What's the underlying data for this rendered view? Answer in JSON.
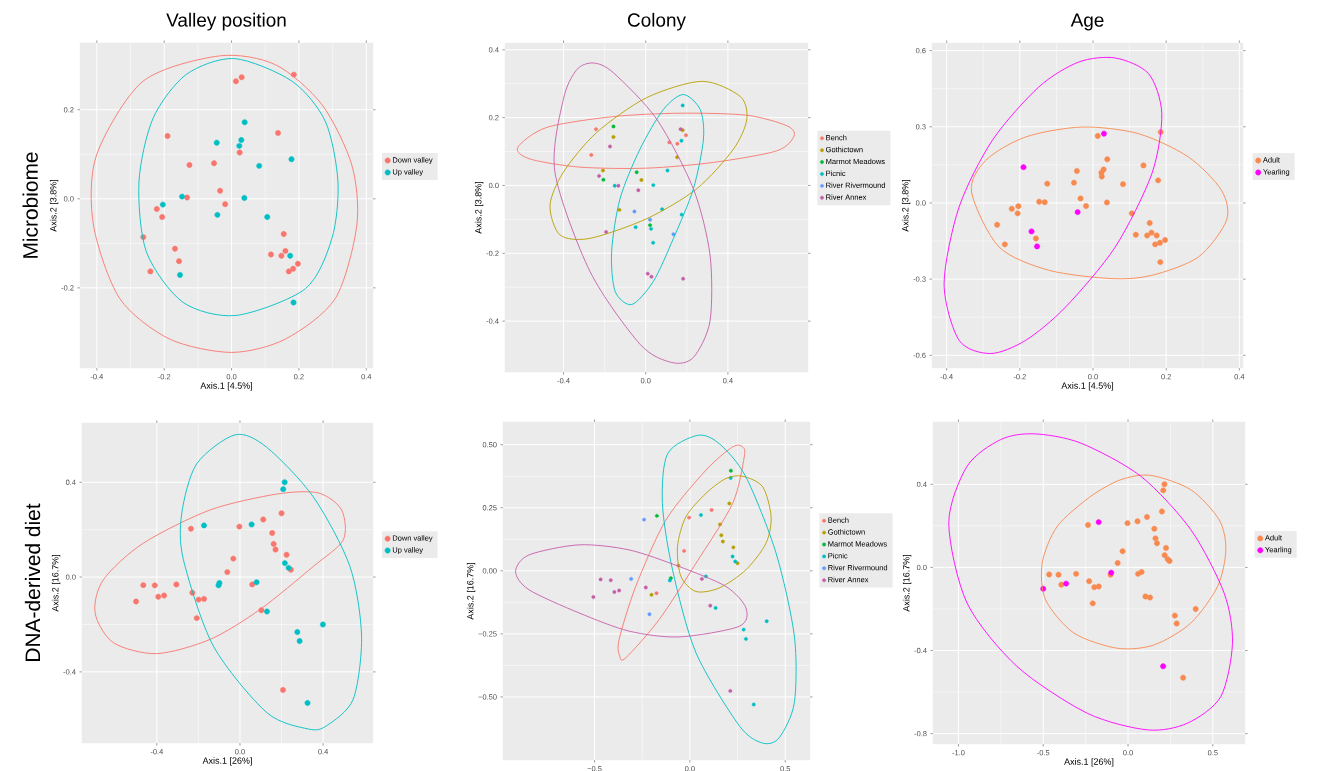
{
  "chart_data": [
    {
      "type": "scatter",
      "title": "Valley position",
      "xlabel": "Axis.1 [4.5%]",
      "ylabel": "Axis.2 [3.8%]",
      "annotations": [
        "Microbiome"
      ],
      "grid": true,
      "legend": "right",
      "marker": "circle",
      "xlim": [
        -0.45,
        0.42
      ],
      "ylim": [
        -0.38,
        0.35
      ],
      "xticks": [
        {
          "value": -0.4,
          "label": "-0.4"
        },
        {
          "value": -0.2,
          "label": "-0.2"
        },
        {
          "value": 0,
          "label": "0.0"
        },
        {
          "value": 0.2,
          "label": "0.2"
        },
        {
          "value": 0.4,
          "label": "0.4"
        }
      ],
      "yticks": [
        {
          "value": -0.2,
          "label": "-0.2"
        },
        {
          "value": 0,
          "label": "0.0"
        },
        {
          "value": 0.2,
          "label": "0.2"
        }
      ],
      "series": [
        {
          "name": "Down valley",
          "color": "#F8766D",
          "x": [
            0.013,
            0.03,
            0.185,
            -0.19,
            0.138,
            0.024,
            -0.125,
            -0.052,
            -0.034,
            -0.019,
            -0.132,
            -0.222,
            -0.206,
            -0.262,
            -0.168,
            -0.156,
            -0.241,
            0.155,
            0.117,
            0.148,
            0.16,
            0.197,
            0.183,
            0.17
          ],
          "values": [
            0.264,
            0.273,
            0.279,
            0.141,
            0.148,
            0.104,
            0.076,
            0.08,
            0.018,
            -0.012,
            0.003,
            -0.023,
            -0.041,
            -0.086,
            -0.112,
            -0.14,
            -0.163,
            -0.079,
            -0.125,
            -0.128,
            -0.117,
            -0.146,
            -0.157,
            -0.163
          ]
        },
        {
          "name": "Up valley",
          "color": "#00BFC4",
          "x": [
            -0.044,
            0.039,
            0.029,
            0.023,
            0.178,
            0.082,
            -0.147,
            -0.204,
            0.038,
            -0.042,
            0.106,
            0.174,
            -0.153,
            0.184
          ],
          "values": [
            0.126,
            0.172,
            0.132,
            0.119,
            0.089,
            0.074,
            0.005,
            -0.013,
            0.002,
            -0.036,
            -0.041,
            -0.128,
            -0.171,
            -0.233
          ]
        }
      ]
    },
    {
      "type": "scatter",
      "title": "Colony",
      "ylabel": "Axis.2 [3.8%]",
      "grid": true,
      "legend": "right",
      "marker": "circle",
      "xlim": [
        -0.685,
        0.79
      ],
      "ylim": [
        -0.55,
        0.42
      ],
      "xticks": [
        {
          "value": -0.4,
          "label": "-0.4"
        },
        {
          "value": 0,
          "label": "0.0"
        },
        {
          "value": 0.4,
          "label": "0.4"
        }
      ],
      "yticks": [
        {
          "value": -0.4,
          "label": "-0.4"
        },
        {
          "value": -0.2,
          "label": "-0.2"
        },
        {
          "value": 0,
          "label": "0.0"
        },
        {
          "value": 0.2,
          "label": "0.2"
        },
        {
          "value": 0.4,
          "label": "0.4"
        }
      ],
      "series": [
        {
          "name": "Bench",
          "color": "#F8766D",
          "x": [
            -0.242,
            -0.265,
            0.115,
            0.154,
            0.196
          ],
          "values": [
            0.166,
            0.09,
            0.127,
            0.123,
            0.148
          ]
        },
        {
          "name": "Gothictown",
          "color": "#B79F00",
          "x": [
            -0.157,
            -0.208,
            0.18,
            0.153,
            -0.021,
            -0.128
          ],
          "values": [
            0.143,
            0.044,
            0.163,
            0.083,
            0.016,
            -0.072
          ]
        },
        {
          "name": "Marmot Meadows",
          "color": "#00BA38",
          "x": [
            -0.157,
            -0.206,
            -0.044,
            0.021
          ],
          "values": [
            0.174,
            0.017,
            0.039,
            -0.117
          ]
        },
        {
          "name": "Picnic",
          "color": "#00BFC4",
          "x": [
            0.18,
            0.174,
            0.106,
            -0.151,
            0.037,
            0.08,
            -0.049,
            0.026,
            0.036,
            0.175
          ],
          "values": [
            0.236,
            0.132,
            0.044,
            -0.001,
            0.001,
            -0.07,
            -0.123,
            -0.128,
            -0.169,
            -0.086
          ]
        },
        {
          "name": "River Rivermound",
          "color": "#619CFF",
          "x": [
            -0.055,
            0.021,
            0.135
          ],
          "values": [
            -0.077,
            -0.101,
            -0.144
          ]
        },
        {
          "name": "River Annex",
          "color": "#C55FA9",
          "x": [
            0.17,
            -0.174,
            -0.227,
            -0.133,
            -0.036,
            -0.193,
            0.01,
            0.028,
            0.182
          ],
          "values": [
            0.166,
            0.115,
            0.028,
            -0.001,
            -0.014,
            -0.137,
            -0.26,
            -0.269,
            -0.275
          ]
        }
      ]
    },
    {
      "type": "scatter",
      "title": "Age",
      "xlabel": "Axis.1 [4.5%]",
      "ylabel": "Axis.2 [3.8%]",
      "grid": true,
      "legend": "right",
      "marker": "circle",
      "xlim": [
        -0.44,
        0.41
      ],
      "ylim": [
        -0.65,
        0.63
      ],
      "xticks": [
        {
          "value": -0.4,
          "label": "-0.4"
        },
        {
          "value": -0.2,
          "label": "-0.2"
        },
        {
          "value": 0,
          "label": "0.0"
        },
        {
          "value": 0.2,
          "label": "0.2"
        },
        {
          "value": 0.4,
          "label": "0.4"
        }
      ],
      "yticks": [
        {
          "value": -0.6,
          "label": "-0.6"
        },
        {
          "value": -0.3,
          "label": "-0.3"
        },
        {
          "value": 0,
          "label": "0.0"
        },
        {
          "value": 0.3,
          "label": "0.3"
        },
        {
          "value": 0.6,
          "label": "0.6"
        }
      ],
      "series": [
        {
          "name": "Adult",
          "color": "#F8894F",
          "x": [
            0.013,
            0.185,
            0.138,
            0.024,
            -0.125,
            -0.052,
            -0.034,
            -0.019,
            -0.132,
            -0.222,
            -0.206,
            -0.262,
            -0.156,
            -0.241,
            0.155,
            0.117,
            0.148,
            0.16,
            0.197,
            0.183,
            0.17,
            -0.044,
            0.039,
            0.029,
            0.023,
            0.178,
            0.082,
            -0.147,
            -0.204,
            0.038,
            0.106,
            0.174,
            0.184
          ],
          "values": [
            0.264,
            0.279,
            0.148,
            0.104,
            0.076,
            0.08,
            0.018,
            -0.012,
            0.003,
            -0.023,
            -0.041,
            -0.086,
            -0.14,
            -0.163,
            -0.079,
            -0.125,
            -0.128,
            -0.117,
            -0.146,
            -0.157,
            -0.163,
            0.126,
            0.172,
            0.132,
            0.119,
            0.089,
            0.074,
            0.005,
            -0.013,
            0.002,
            -0.041,
            -0.128,
            -0.233
          ]
        },
        {
          "name": "Yearling",
          "color": "#FF00FF",
          "x": [
            -0.19,
            -0.168,
            -0.153,
            -0.042,
            0.03
          ],
          "values": [
            0.141,
            -0.112,
            -0.171,
            -0.036,
            0.273
          ]
        }
      ]
    },
    {
      "type": "scatter",
      "xlabel": "Axis.1 [26%]",
      "ylabel": "Axis.2 [16.7%]",
      "annotations": [
        "DNA-derived diet"
      ],
      "grid": true,
      "legend": "right",
      "marker": "circle",
      "xlim": [
        -0.76,
        0.64
      ],
      "ylim": [
        -0.7,
        0.65
      ],
      "xticks": [
        {
          "value": -0.4,
          "label": "-0.4"
        },
        {
          "value": 0,
          "label": "0.0"
        },
        {
          "value": 0.4,
          "label": "0.4"
        }
      ],
      "yticks": [
        {
          "value": -0.4,
          "label": "-0.4"
        },
        {
          "value": 0,
          "label": "0.0"
        },
        {
          "value": 0.4,
          "label": "0.4"
        }
      ],
      "series": [
        {
          "name": "Down valley",
          "color": "#F8766D",
          "x": [
            -0.5,
            -0.465,
            -0.41,
            -0.393,
            -0.365,
            -0.306,
            -0.236,
            -0.229,
            -0.199,
            -0.173,
            -0.208,
            -0.061,
            -0.032,
            -0.003,
            0.059,
            0.112,
            0.155,
            0.162,
            0.171,
            0.2,
            0.224,
            0.245,
            0.103,
            0.207
          ],
          "values": [
            -0.103,
            -0.034,
            -0.035,
            -0.083,
            -0.078,
            -0.031,
            0.204,
            -0.066,
            -0.095,
            -0.092,
            -0.173,
            0.021,
            0.078,
            0.213,
            -0.031,
            0.243,
            0.186,
            0.14,
            0.116,
            0.269,
            0.094,
            0.031,
            -0.14,
            -0.476
          ]
        },
        {
          "name": "Up valley",
          "color": "#00BFC4",
          "x": [
            -0.173,
            0.056,
            0.215,
            0.208,
            0.216,
            0.234,
            -0.103,
            -0.099,
            0.08,
            0.13,
            0.276,
            0.287,
            0.399,
            0.325
          ],
          "values": [
            0.218,
            0.222,
            0.4,
            0.371,
            0.059,
            0.039,
            -0.035,
            -0.025,
            -0.022,
            -0.145,
            -0.232,
            -0.27,
            -0.2,
            -0.531
          ]
        }
      ]
    },
    {
      "type": "scatter",
      "ylabel": "Axis.2 [16.7%]",
      "grid": true,
      "legend": "right",
      "marker": "circle",
      "xlim": [
        -0.98,
        0.63
      ],
      "ylim": [
        -0.75,
        0.59
      ],
      "xticks": [
        {
          "value": -0.5,
          "label": "−0.5"
        },
        {
          "value": 0,
          "label": "0.0"
        },
        {
          "value": 0.5,
          "label": "0.5"
        }
      ],
      "yticks": [
        {
          "value": -0.5,
          "label": "−0.50"
        },
        {
          "value": -0.25,
          "label": "−0.25"
        },
        {
          "value": 0,
          "label": "0.00"
        },
        {
          "value": 0.25,
          "label": "0.25"
        },
        {
          "value": 0.5,
          "label": "0.50"
        }
      ],
      "series": [
        {
          "name": "Bench",
          "color": "#F8766D",
          "x": [
            0.114,
            -0.004,
            -0.03,
            -0.175,
            -0.06
          ],
          "values": [
            0.241,
            0.211,
            0.079,
            -0.089,
            0.021
          ]
        },
        {
          "name": "Gothictown",
          "color": "#B79F00",
          "x": [
            0.207,
            0.158,
            0.165,
            0.173,
            0.228,
            0.25,
            -0.201
          ],
          "values": [
            0.267,
            0.184,
            0.141,
            0.116,
            0.093,
            0.03,
            -0.095
          ]
        },
        {
          "name": "Marmot Meadows",
          "color": "#00BA38",
          "x": [
            -0.173,
            0.215,
            -0.1
          ],
          "values": [
            0.218,
            0.397,
            -0.029
          ]
        },
        {
          "name": "Picnic",
          "color": "#00BFC4",
          "x": [
            0.214,
            0.058,
            0.224,
            0.238,
            0.084,
            -0.105,
            0.135,
            0.282,
            0.294,
            0.403,
            0.335
          ],
          "values": [
            0.368,
            0.221,
            0.057,
            0.037,
            -0.022,
            -0.038,
            -0.147,
            -0.233,
            -0.27,
            -0.2,
            -0.53
          ]
        },
        {
          "name": "River Rivermound",
          "color": "#619CFF",
          "x": [
            -0.24,
            -0.308,
            -0.212
          ],
          "values": [
            0.203,
            -0.032,
            -0.172
          ]
        },
        {
          "name": "River Annex",
          "color": "#C55FA9",
          "x": [
            -0.506,
            -0.468,
            -0.415,
            -0.396,
            -0.371,
            -0.231,
            0.063,
            0.107,
            0.212
          ],
          "values": [
            -0.104,
            -0.034,
            -0.037,
            -0.084,
            -0.078,
            -0.066,
            -0.032,
            -0.138,
            -0.476
          ]
        }
      ]
    },
    {
      "type": "scatter",
      "xlabel": "Axis.1 [26%]",
      "ylabel": "Axis.2 [16.7%]",
      "grid": true,
      "legend": "right",
      "marker": "circle",
      "xlim": [
        -1.15,
        0.69
      ],
      "ylim": [
        -0.85,
        0.7
      ],
      "xticks": [
        {
          "value": -1.0,
          "label": "-1.0"
        },
        {
          "value": -0.5,
          "label": "-0.5"
        },
        {
          "value": 0,
          "label": "0.0"
        },
        {
          "value": 0.5,
          "label": "0.5"
        }
      ],
      "yticks": [
        {
          "value": -0.8,
          "label": "-0.8"
        },
        {
          "value": -0.4,
          "label": "-0.4"
        },
        {
          "value": 0,
          "label": "0.0"
        },
        {
          "value": 0.4,
          "label": "0.4"
        }
      ],
      "series": [
        {
          "name": "Adult",
          "color": "#F8894F",
          "x": [
            -0.465,
            -0.41,
            -0.393,
            -0.306,
            -0.236,
            -0.229,
            -0.199,
            -0.173,
            -0.208,
            -0.061,
            -0.032,
            -0.003,
            0.059,
            0.112,
            0.155,
            0.162,
            0.171,
            0.2,
            0.224,
            0.245,
            0.103,
            0.056,
            0.215,
            0.208,
            0.216,
            0.234,
            -0.103,
            0.08,
            0.13,
            0.276,
            0.287,
            0.399,
            0.325
          ],
          "values": [
            -0.034,
            -0.035,
            -0.083,
            -0.031,
            0.204,
            -0.066,
            -0.095,
            -0.092,
            -0.173,
            0.021,
            0.078,
            0.213,
            -0.031,
            0.243,
            0.186,
            0.14,
            0.116,
            0.269,
            0.094,
            0.031,
            -0.14,
            0.222,
            0.4,
            0.371,
            0.059,
            0.039,
            -0.035,
            -0.022,
            -0.145,
            -0.232,
            -0.27,
            -0.2,
            -0.531
          ]
        },
        {
          "name": "Yearling",
          "color": "#FF00FF",
          "x": [
            -0.5,
            -0.365,
            -0.099,
            -0.173,
            0.207
          ],
          "values": [
            -0.103,
            -0.078,
            -0.025,
            0.218,
            -0.476
          ]
        }
      ]
    }
  ]
}
